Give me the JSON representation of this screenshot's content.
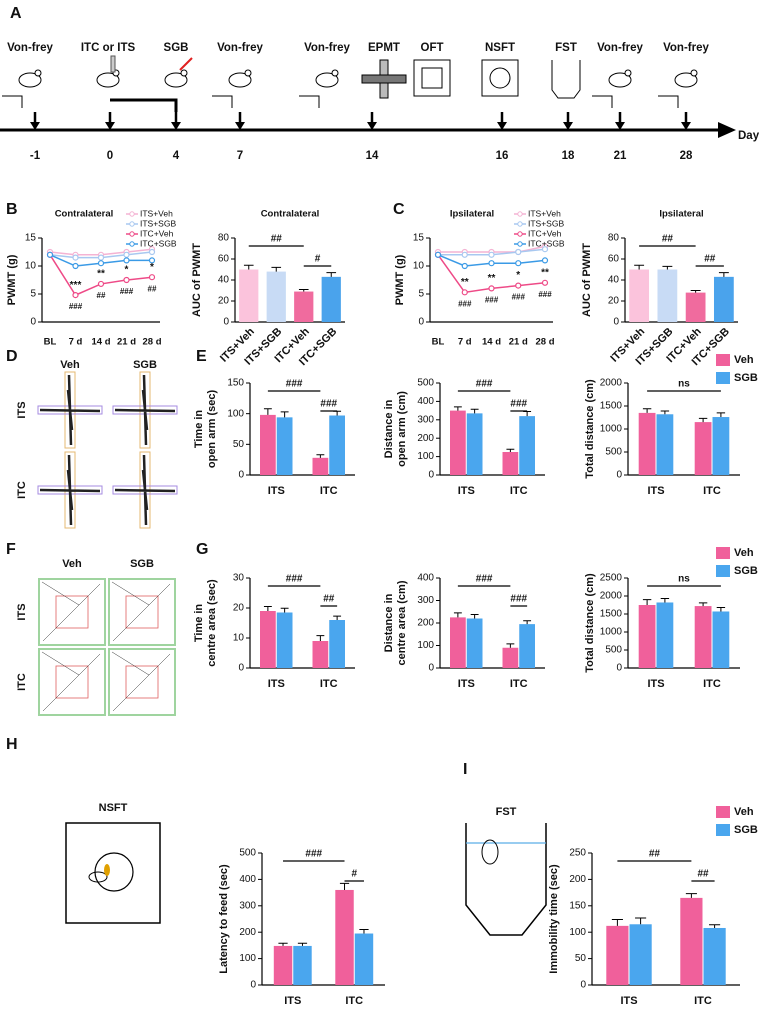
{
  "panel_labels": [
    "A",
    "B",
    "C",
    "D",
    "E",
    "F",
    "G",
    "H",
    "I"
  ],
  "timeline": {
    "events": [
      "Von-frey",
      "ITC or ITS",
      "SGB",
      "Von-frey",
      "Von-frey",
      "EPMT",
      "OFT",
      "NSFT",
      "FST",
      "Von-frey",
      "Von-frey"
    ],
    "days": [
      -1,
      0,
      4,
      7,
      14,
      16,
      18,
      21,
      28
    ],
    "axis_label": "Day"
  },
  "epm": {
    "columns": [
      "Veh",
      "SGB"
    ],
    "rows": [
      "ITS",
      "ITC"
    ]
  },
  "oft": {
    "columns": [
      "Veh",
      "SGB"
    ],
    "rows": [
      "ITS",
      "ITC"
    ]
  },
  "nsft_title": "NSFT",
  "fst_title": "FST",
  "chart_data": [
    {
      "type": "line",
      "title": "Contralateral",
      "ylabel": [
        "PWMT (g)"
      ],
      "categories": [
        "BL",
        "7 d",
        "14 d",
        "21 d",
        "28 d"
      ],
      "ylim": [
        0,
        15
      ],
      "yticks": [
        0,
        5,
        10,
        15
      ],
      "legend": true,
      "series": [
        {
          "name": "ITS+Veh",
          "color": "#f4b3d3",
          "values": [
            12.5,
            12,
            12,
            12.5,
            13
          ]
        },
        {
          "name": "ITS+SGB",
          "color": "#a8c8f0",
          "values": [
            12,
            11.5,
            11.5,
            12,
            12.5
          ]
        },
        {
          "name": "ITC+Veh",
          "color": "#ee4a87",
          "values": [
            12,
            4.8,
            6.8,
            7.5,
            8
          ]
        },
        {
          "name": "ITC+SGB",
          "color": "#3a9ae6",
          "values": [
            12,
            10,
            10.5,
            11,
            11
          ]
        }
      ],
      "star_labels": [
        null,
        "***",
        "**",
        "*",
        "*"
      ],
      "hash_labels": [
        null,
        "###",
        "##",
        "###",
        "##"
      ]
    },
    {
      "type": "bar",
      "title": "Contralateral",
      "ylabel": [
        "AUC of PWMT"
      ],
      "categories": [
        "ITS+Veh",
        "ITS+SGB",
        "ITC+Veh",
        "ITC+SGB"
      ],
      "values": [
        50,
        48,
        29,
        43
      ],
      "errors": [
        4,
        4,
        2,
        4
      ],
      "colors": [
        "#fbc3dc",
        "#c8dbf5",
        "#f06b9e",
        "#4aa3ec"
      ],
      "ylim": [
        0,
        80
      ],
      "yticks": [
        0,
        20,
        40,
        60,
        80
      ],
      "significance": [
        "##",
        "#"
      ]
    },
    {
      "type": "line",
      "title": "Ipsilateral",
      "ylabel": [
        "PWMT (g)"
      ],
      "categories": [
        "BL",
        "7 d",
        "14 d",
        "21 d",
        "28 d"
      ],
      "ylim": [
        0,
        15
      ],
      "yticks": [
        0,
        5,
        10,
        15
      ],
      "legend": true,
      "series": [
        {
          "name": "ITS+Veh",
          "color": "#f4b3d3",
          "values": [
            12.5,
            12.5,
            12.5,
            12.5,
            13.5
          ]
        },
        {
          "name": "ITS+SGB",
          "color": "#a8c8f0",
          "values": [
            12,
            12,
            12,
            12.5,
            13
          ]
        },
        {
          "name": "ITC+Veh",
          "color": "#ee4a87",
          "values": [
            12,
            5.3,
            6,
            6.5,
            7
          ]
        },
        {
          "name": "ITC+SGB",
          "color": "#3a9ae6",
          "values": [
            12,
            10,
            10.5,
            10.5,
            11
          ]
        }
      ],
      "star_labels": [
        null,
        "**",
        "**",
        "*",
        "**"
      ],
      "hash_labels": [
        null,
        "###",
        "###",
        "###",
        "###"
      ]
    },
    {
      "type": "bar",
      "title": "Ipsilateral",
      "ylabel": [
        "AUC of PWMT"
      ],
      "categories": [
        "ITS+Veh",
        "ITS+SGB",
        "ITC+Veh",
        "ITC+SGB"
      ],
      "values": [
        50,
        50,
        28,
        43
      ],
      "errors": [
        4,
        3,
        2,
        4
      ],
      "colors": [
        "#fbc3dc",
        "#c8dbf5",
        "#f06b9e",
        "#4aa3ec"
      ],
      "ylim": [
        0,
        80
      ],
      "yticks": [
        0,
        20,
        40,
        60,
        80
      ],
      "significance": [
        "##",
        "##"
      ]
    },
    {
      "type": "bar",
      "ylabel": [
        "Time in",
        "open arm (sec)"
      ],
      "categories": [
        "ITS",
        "ITC"
      ],
      "ylim": [
        0,
        150
      ],
      "yticks": [
        0,
        50,
        100,
        150
      ],
      "series": [
        {
          "color": "#f0609b",
          "values": [
            98,
            28
          ],
          "errors": [
            10,
            5
          ]
        },
        {
          "color": "#4aa6ee",
          "values": [
            94,
            97
          ],
          "errors": [
            9,
            7
          ]
        }
      ],
      "significance": [
        "###",
        "###"
      ]
    },
    {
      "type": "bar",
      "ylabel": [
        "Distance in",
        "open arm (cm)"
      ],
      "categories": [
        "ITS",
        "ITC"
      ],
      "ylim": [
        0,
        500
      ],
      "yticks": [
        0,
        100,
        200,
        300,
        400,
        500
      ],
      "series": [
        {
          "color": "#f0609b",
          "values": [
            350,
            125
          ],
          "errors": [
            20,
            15
          ]
        },
        {
          "color": "#4aa6ee",
          "values": [
            335,
            320
          ],
          "errors": [
            22,
            25
          ]
        }
      ],
      "significance": [
        "###",
        "###"
      ]
    },
    {
      "type": "bar",
      "ylabel": [
        "Total distance (cm)"
      ],
      "categories": [
        "ITS",
        "ITC"
      ],
      "ylim": [
        0,
        2000
      ],
      "yticks": [
        0,
        500,
        1000,
        1500,
        2000
      ],
      "series": [
        {
          "name": "Veh",
          "color": "#f0609b",
          "values": [
            1350,
            1150
          ],
          "errors": [
            90,
            80
          ]
        },
        {
          "name": "SGB",
          "color": "#4aa6ee",
          "values": [
            1320,
            1260
          ],
          "errors": [
            70,
            90
          ]
        }
      ],
      "significance": [
        "ns"
      ],
      "legend": true
    },
    {
      "type": "bar",
      "ylabel": [
        "Time in",
        "centre area (sec)"
      ],
      "categories": [
        "ITS",
        "ITC"
      ],
      "ylim": [
        0,
        30
      ],
      "yticks": [
        0,
        10,
        20,
        30
      ],
      "series": [
        {
          "color": "#f0609b",
          "values": [
            19,
            9
          ],
          "errors": [
            1.5,
            1.8
          ]
        },
        {
          "color": "#4aa6ee",
          "values": [
            18.5,
            16
          ],
          "errors": [
            1.4,
            1.3
          ]
        }
      ],
      "significance": [
        "###",
        "##"
      ]
    },
    {
      "type": "bar",
      "ylabel": [
        "Distance in",
        "centre area (cm)"
      ],
      "categories": [
        "ITS",
        "ITC"
      ],
      "ylim": [
        0,
        400
      ],
      "yticks": [
        0,
        100,
        200,
        300,
        400
      ],
      "series": [
        {
          "color": "#f0609b",
          "values": [
            225,
            90
          ],
          "errors": [
            20,
            17
          ]
        },
        {
          "color": "#4aa6ee",
          "values": [
            220,
            195
          ],
          "errors": [
            18,
            15
          ]
        }
      ],
      "significance": [
        "###",
        "###"
      ]
    },
    {
      "type": "bar",
      "ylabel": [
        "Total distance (cm)"
      ],
      "categories": [
        "ITS",
        "ITC"
      ],
      "ylim": [
        0,
        2500
      ],
      "yticks": [
        0,
        500,
        1000,
        1500,
        2000,
        2500
      ],
      "series": [
        {
          "name": "Veh",
          "color": "#f0609b",
          "values": [
            1750,
            1720
          ],
          "errors": [
            150,
            90
          ]
        },
        {
          "name": "SGB",
          "color": "#4aa6ee",
          "values": [
            1820,
            1570
          ],
          "errors": [
            110,
            110
          ]
        }
      ],
      "significance": [
        "ns"
      ],
      "legend": true
    },
    {
      "type": "bar",
      "ylabel": [
        "Latency to feed (sec)"
      ],
      "categories": [
        "ITS",
        "ITC"
      ],
      "ylim": [
        0,
        500
      ],
      "yticks": [
        0,
        100,
        200,
        300,
        400,
        500
      ],
      "series": [
        {
          "color": "#f0609b",
          "values": [
            148,
            360
          ],
          "errors": [
            10,
            25
          ]
        },
        {
          "color": "#4aa6ee",
          "values": [
            148,
            195
          ],
          "errors": [
            10,
            15
          ]
        }
      ],
      "significance": [
        "###",
        "#"
      ]
    },
    {
      "type": "bar",
      "ylabel": [
        "Immobility time (sec)"
      ],
      "categories": [
        "ITS",
        "ITC"
      ],
      "ylim": [
        0,
        250
      ],
      "yticks": [
        0,
        50,
        100,
        150,
        200,
        250
      ],
      "series": [
        {
          "name": "Veh",
          "color": "#f0609b",
          "values": [
            112,
            165
          ],
          "errors": [
            12,
            8
          ]
        },
        {
          "name": "SGB",
          "color": "#4aa6ee",
          "values": [
            115,
            108
          ],
          "errors": [
            12,
            6
          ]
        }
      ],
      "significance": [
        "##",
        "##"
      ],
      "legend": true
    }
  ]
}
